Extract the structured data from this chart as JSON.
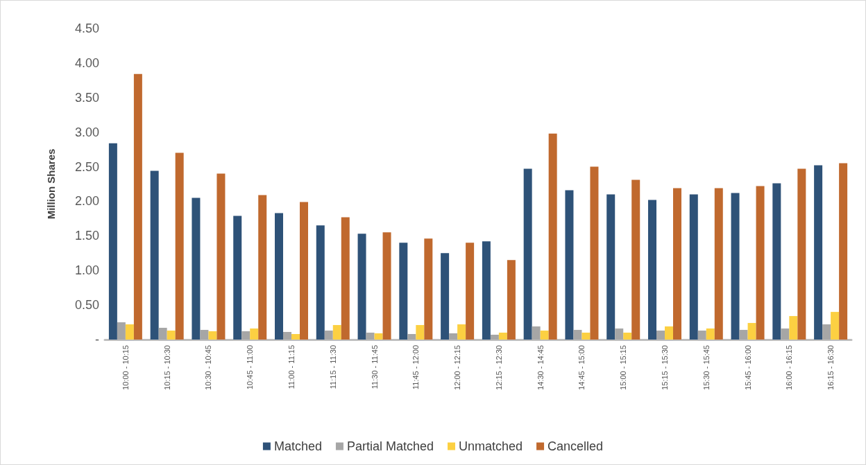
{
  "chart_data": {
    "type": "bar",
    "ylabel": "Million Shares",
    "categories": [
      "10:00 - 10:15",
      "10:15 - 10:30",
      "10:30 - 10:45",
      "10:45 - 11:00",
      "11:00 - 11:15",
      "11:15 - 11:30",
      "11:30 - 11:45",
      "11:45 - 12:00",
      "12:00 - 12:15",
      "12:15 - 12:30",
      "14:30 - 14:45",
      "14:45 - 15:00",
      "15:00 - 15:15",
      "15:15 - 15:30",
      "15:30 - 15:45",
      "15:45 - 16:00",
      "16:00 - 16:15",
      "16:15 - 16:30"
    ],
    "series": [
      {
        "name": "Matched",
        "color": "#2e5278",
        "values": [
          2.84,
          2.44,
          2.05,
          1.79,
          1.83,
          1.65,
          1.53,
          1.4,
          1.25,
          1.42,
          2.47,
          2.16,
          2.1,
          2.02,
          2.1,
          2.12,
          2.26,
          2.52
        ]
      },
      {
        "name": "Partial Matched",
        "color": "#a6a6a6",
        "values": [
          0.25,
          0.17,
          0.14,
          0.12,
          0.11,
          0.13,
          0.1,
          0.08,
          0.09,
          0.07,
          0.19,
          0.14,
          0.16,
          0.13,
          0.13,
          0.14,
          0.16,
          0.22
        ]
      },
      {
        "name": "Unmatched",
        "color": "#fcd042",
        "values": [
          0.22,
          0.13,
          0.12,
          0.16,
          0.08,
          0.21,
          0.09,
          0.21,
          0.22,
          0.1,
          0.13,
          0.1,
          0.1,
          0.19,
          0.16,
          0.24,
          0.34,
          0.4
        ]
      },
      {
        "name": "Cancelled",
        "color": "#c0692e",
        "values": [
          3.84,
          2.7,
          2.4,
          2.09,
          1.99,
          1.77,
          1.55,
          1.46,
          1.4,
          1.15,
          2.98,
          2.5,
          2.31,
          2.19,
          2.19,
          2.22,
          2.47,
          2.55
        ]
      }
    ],
    "ylim": [
      0,
      4.5
    ],
    "yticks": [
      {
        "value": 0,
        "label": "-"
      },
      {
        "value": 0.5,
        "label": "0.50"
      },
      {
        "value": 1,
        "label": "1.00"
      },
      {
        "value": 1.5,
        "label": "1.50"
      },
      {
        "value": 2,
        "label": "2.00"
      },
      {
        "value": 2.5,
        "label": "2.50"
      },
      {
        "value": 3,
        "label": "3.00"
      },
      {
        "value": 3.5,
        "label": "3.50"
      },
      {
        "value": 4,
        "label": "4.00"
      },
      {
        "value": 4.5,
        "label": "4.50"
      }
    ],
    "grid": false,
    "legend": "bottom"
  }
}
